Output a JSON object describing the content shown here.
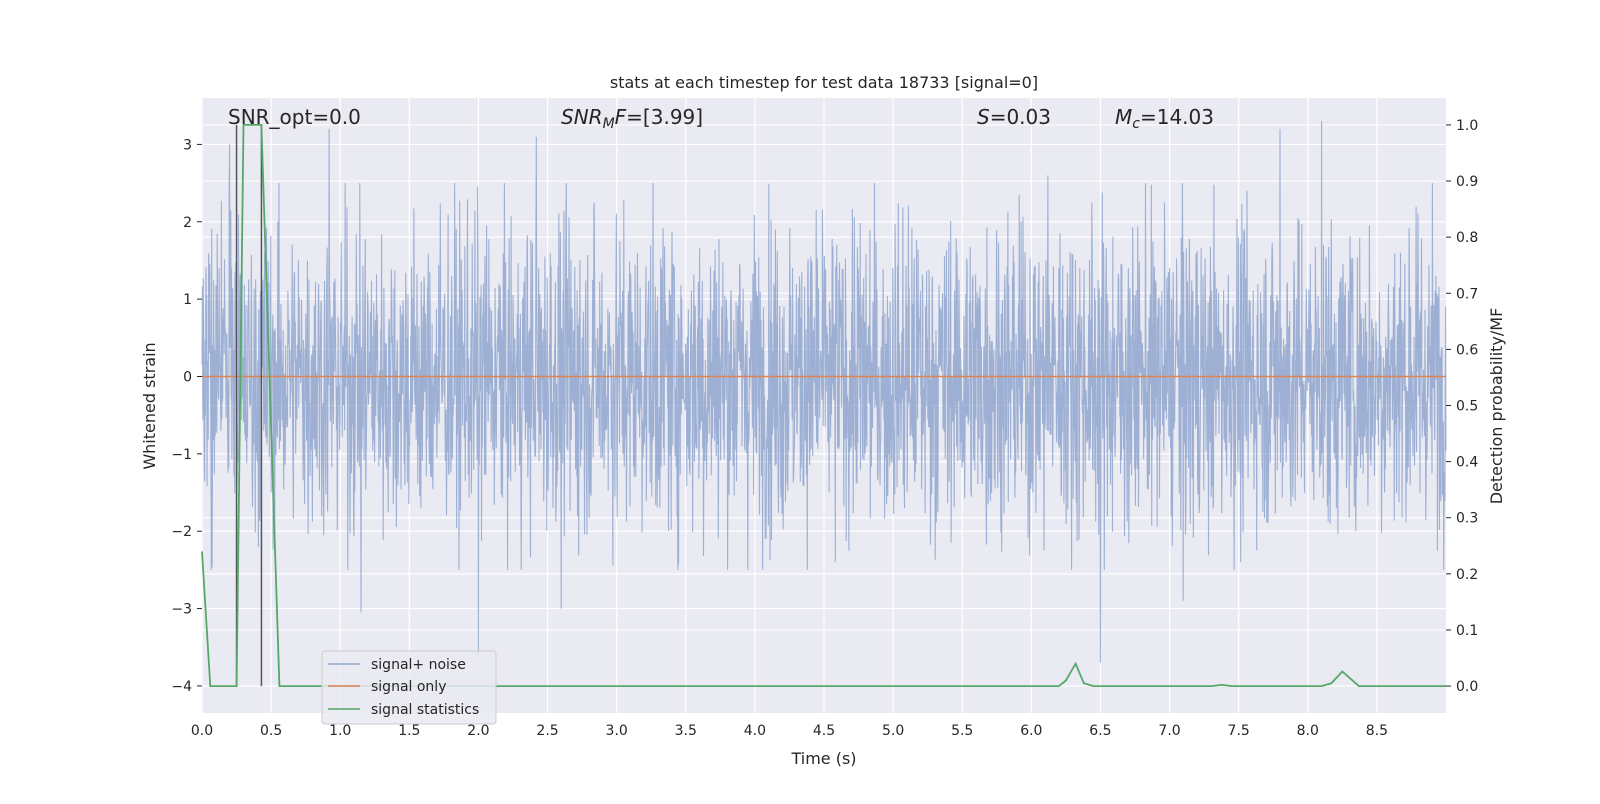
{
  "chart_data": {
    "type": "line",
    "title": "stats at each timestep for test data 18733 [signal=0]",
    "xlabel": "Time (s)",
    "ylabel_left": "Whitened strain",
    "ylabel_right": "Detection probability/MF",
    "xlim": [
      0.0,
      9.0
    ],
    "ylim_left": [
      -4.35,
      3.6
    ],
    "ylim_right": [
      -0.048,
      1.048
    ],
    "x_ticks": [
      "0.0",
      "0.5",
      "1.0",
      "1.5",
      "2.0",
      "2.5",
      "3.0",
      "3.5",
      "4.0",
      "4.5",
      "5.0",
      "5.5",
      "6.0",
      "6.5",
      "7.0",
      "7.5",
      "8.0",
      "8.5"
    ],
    "y_ticks_left": [
      "3",
      "2",
      "1",
      "0",
      "−1",
      "−2",
      "−3",
      "−4"
    ],
    "y_ticks_right": [
      "1.0",
      "0.9",
      "0.8",
      "0.7",
      "0.6",
      "0.5",
      "0.4",
      "0.3",
      "0.2",
      "0.1",
      "0.0"
    ],
    "grid": true,
    "legend_position": "lower-left",
    "annotations": {
      "snr_opt": "SNR_opt=0.0",
      "snr_mf": "=[3.99]",
      "s_stat": "=0.03",
      "mc": "=14.03"
    },
    "series": [
      {
        "name": "signal+ noise",
        "color": "#8fa6cf",
        "description_axis": "left",
        "amplitude_typical": 1.6,
        "notable_spikes": [
          {
            "x": 0.2,
            "y": 3.0
          },
          {
            "x": 0.92,
            "y": 3.2
          },
          {
            "x": 2.0,
            "y": -3.6
          },
          {
            "x": 2.42,
            "y": 3.1
          },
          {
            "x": 2.6,
            "y": -3.0
          },
          {
            "x": 6.5,
            "y": -3.7
          },
          {
            "x": 6.12,
            "y": 2.6
          },
          {
            "x": 7.8,
            "y": 3.2
          },
          {
            "x": 8.1,
            "y": 3.3
          },
          {
            "x": 1.15,
            "y": -3.05
          },
          {
            "x": 7.1,
            "y": -2.9
          }
        ]
      },
      {
        "name": "signal only",
        "color": "#dd8452",
        "description_axis": "left",
        "x": [
          0.0,
          9.0
        ],
        "y": [
          0.0,
          0.0
        ]
      },
      {
        "name": "signal statistics",
        "color": "#55a868",
        "description_axis": "right",
        "x": [
          0.0,
          0.06,
          0.25,
          0.3,
          0.43,
          0.56,
          6.2,
          6.25,
          6.32,
          6.38,
          6.45,
          7.3,
          7.38,
          7.45,
          8.1,
          8.17,
          8.25,
          8.37,
          9.0
        ],
        "y": [
          0.24,
          0.0,
          0.0,
          1.0,
          1.0,
          0.0,
          0.0,
          0.01,
          0.04,
          0.005,
          0.0,
          0.0,
          0.002,
          0.0,
          0.0,
          0.005,
          0.026,
          0.0,
          0.0
        ]
      }
    ],
    "vertical_markers": [
      {
        "x": 0.25,
        "color": "#55555a"
      },
      {
        "x": 0.43,
        "color": "#55555a"
      }
    ]
  }
}
